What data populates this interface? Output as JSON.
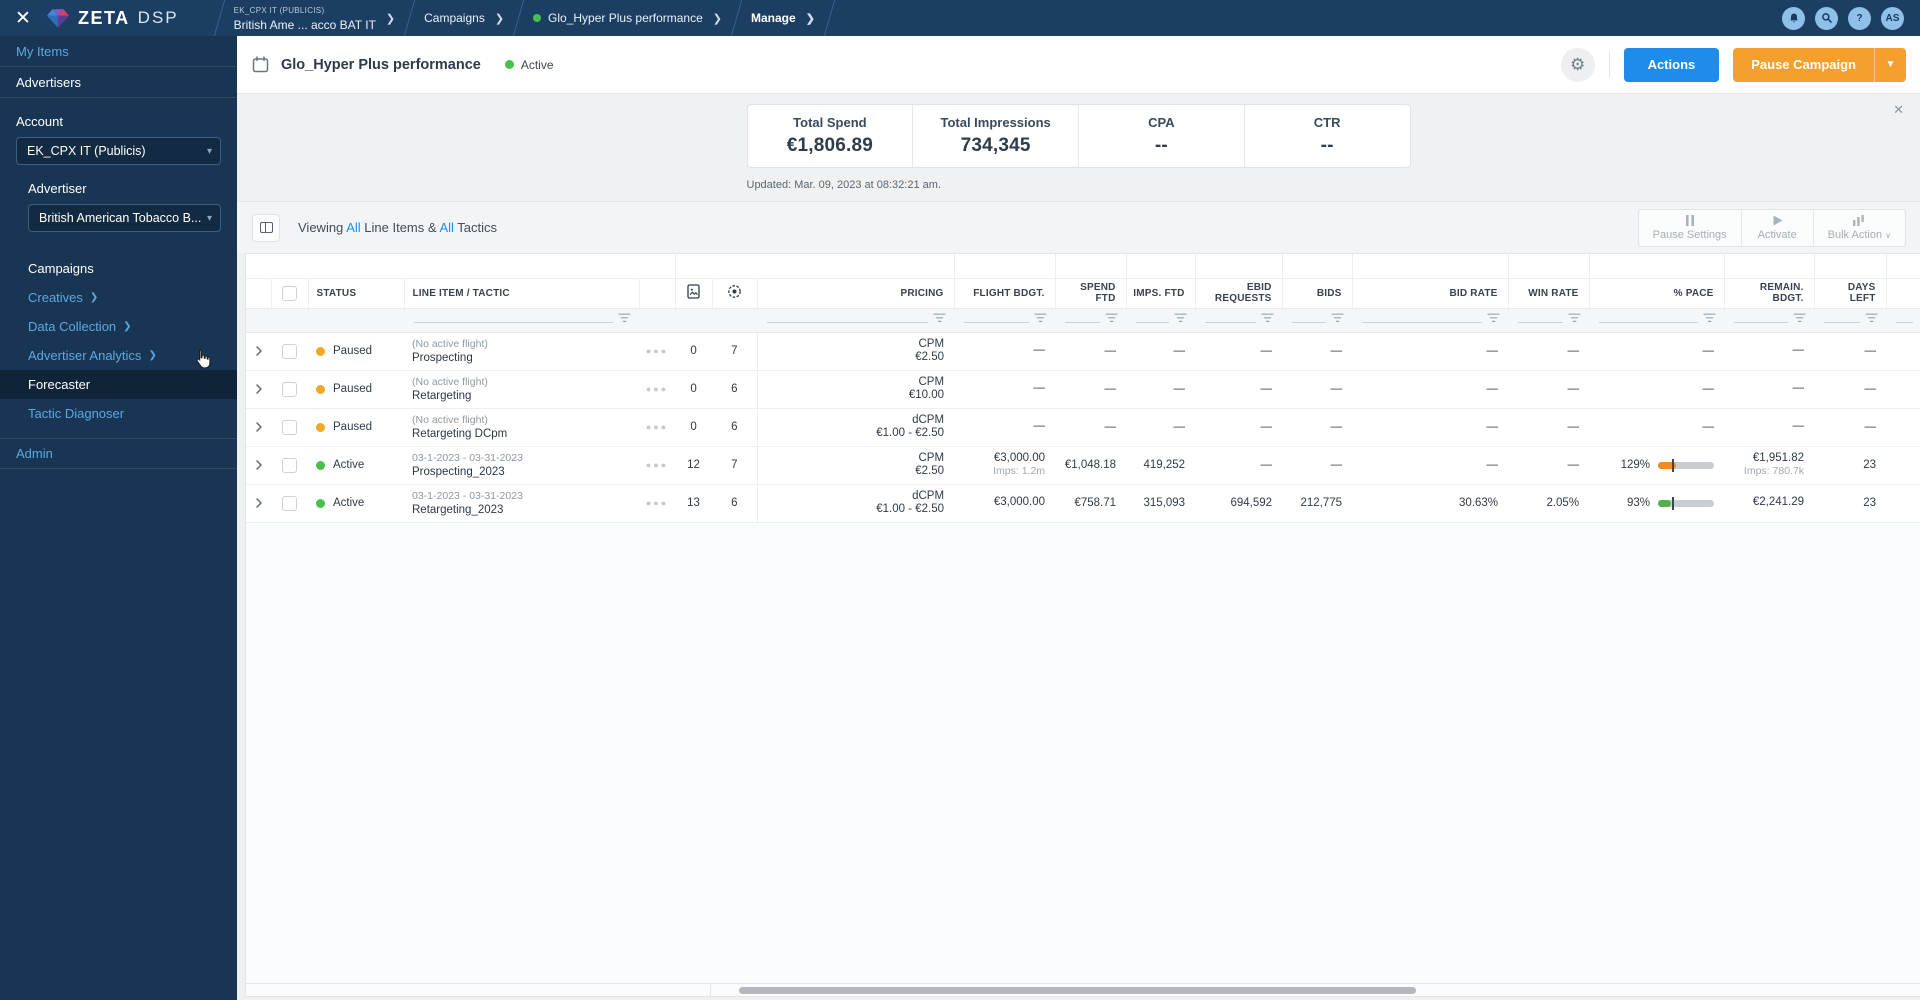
{
  "navbar": {
    "brand": "ZETA",
    "brand_suffix": "DSP",
    "breadcrumb": {
      "account_code": "EK_CPX IT (PUBLICIS)",
      "account_name": "British Ame ... acco BAT IT",
      "campaigns": "Campaigns",
      "campaign_name": "Glo_Hyper Plus performance",
      "manage": "Manage"
    },
    "avatar_initials": "AS"
  },
  "sidebar": {
    "my_items": "My Items",
    "advertisers": "Advertisers",
    "account_label": "Account",
    "account_value": "EK_CPX IT (Publicis)",
    "advertiser_label": "Advertiser",
    "advertiser_value": "British American Tobacco B...",
    "campaigns": "Campaigns",
    "creatives": "Creatives",
    "data_collection": "Data Collection",
    "advertiser_analytics": "Advertiser Analytics",
    "forecaster": "Forecaster",
    "tactic_diagnoser": "Tactic Diagnoser",
    "admin": "Admin"
  },
  "page_header": {
    "title": "Glo_Hyper Plus performance",
    "status": "Active",
    "actions_button": "Actions",
    "pause_button": "Pause Campaign"
  },
  "stats": {
    "items": [
      {
        "label": "Total Spend",
        "value": "€1,806.89"
      },
      {
        "label": "Total Impressions",
        "value": "734,345"
      },
      {
        "label": "CPA",
        "value": "--"
      },
      {
        "label": "CTR",
        "value": "--"
      }
    ],
    "updated": "Updated: Mar. 09, 2023 at 08:32:21 am."
  },
  "toolbar": {
    "viewing_prefix": "Viewing",
    "all_1": "All",
    "mid": "Line Items &",
    "all_2": "All",
    "suffix": "Tactics",
    "pause_settings": "Pause Settings",
    "activate": "Activate",
    "bulk_action": "Bulk Action"
  },
  "table": {
    "headers": {
      "status": "STATUS",
      "line_item": "LINE ITEM / TACTIC",
      "pricing": "PRICING",
      "flight_budget": "FLIGHT BDGT.",
      "spend_ftd": [
        "SPEND",
        "FTD"
      ],
      "imps_ftd": "IMPS. FTD",
      "ebid_requests": [
        "EBID",
        "REQUESTS"
      ],
      "bids": "BIDS",
      "bid_rate": "BID RATE",
      "win_rate": "WIN RATE",
      "pace": "% PACE",
      "remaining_budget": [
        "REMAIN.",
        "BDGT."
      ],
      "days_left": [
        "DAYS",
        "LEFT"
      ]
    },
    "rows": [
      {
        "status": "Paused",
        "status_color": "#F5A623",
        "flight": "(No active flight)",
        "name": "Prospecting",
        "creatives": "0",
        "tactics": "7",
        "pricing": [
          "CPM",
          "€2.50"
        ],
        "flight_budget": [
          "—"
        ],
        "spend_ftd": "—",
        "imps_ftd": "—",
        "ebid_requests": "—",
        "bids": "—",
        "bid_rate": "—",
        "win_rate": "—",
        "pace": "—",
        "remaining": [
          "—"
        ],
        "days_left": "—"
      },
      {
        "status": "Paused",
        "status_color": "#F5A623",
        "flight": "(No active flight)",
        "name": "Retargeting",
        "creatives": "0",
        "tactics": "6",
        "pricing": [
          "CPM",
          "€10.00"
        ],
        "flight_budget": [
          "—"
        ],
        "spend_ftd": "—",
        "imps_ftd": "—",
        "ebid_requests": "—",
        "bids": "—",
        "bid_rate": "—",
        "win_rate": "—",
        "pace": "—",
        "remaining": [
          "—"
        ],
        "days_left": "—"
      },
      {
        "status": "Paused",
        "status_color": "#F5A623",
        "flight": "(No active flight)",
        "name": "Retargeting DCpm",
        "creatives": "0",
        "tactics": "6",
        "pricing": [
          "dCPM",
          "€1.00 - €2.50"
        ],
        "flight_budget": [
          "—"
        ],
        "spend_ftd": "—",
        "imps_ftd": "—",
        "ebid_requests": "—",
        "bids": "—",
        "bid_rate": "—",
        "win_rate": "—",
        "pace": "—",
        "remaining": [
          "—"
        ],
        "days_left": "—"
      },
      {
        "status": "Active",
        "status_color": "#46C24A",
        "flight": "03-1-2023 - 03-31-2023",
        "name": "Prospecting_2023",
        "creatives": "12",
        "tactics": "7",
        "pricing": [
          "CPM",
          "€2.50"
        ],
        "flight_budget": [
          "€3,000.00",
          "Imps: 1.2m"
        ],
        "spend_ftd": "€1,048.18",
        "imps_ftd": "419,252",
        "ebid_requests": "—",
        "bids": "—",
        "bid_rate": "—",
        "win_rate": "—",
        "pace": {
          "label": "129%",
          "fill": 32,
          "marker": 25,
          "color": "#F08A24"
        },
        "remaining": [
          "€1,951.82",
          "Imps: 780.7k"
        ],
        "days_left": "23"
      },
      {
        "status": "Active",
        "status_color": "#46C24A",
        "flight": "03-1-2023 - 03-31-2023",
        "name": "Retargeting_2023",
        "creatives": "13",
        "tactics": "6",
        "pricing": [
          "dCPM",
          "€1.00 - €2.50"
        ],
        "flight_budget": [
          "€3,000.00"
        ],
        "spend_ftd": "€758.71",
        "imps_ftd": "315,093",
        "ebid_requests": "694,592",
        "bids": "212,775",
        "bid_rate": "30.63%",
        "win_rate": "2.05%",
        "pace": {
          "label": "93%",
          "fill": 23,
          "marker": 25,
          "color": "#55B04C"
        },
        "remaining": [
          "€2,241.29"
        ],
        "days_left": "23"
      }
    ]
  }
}
